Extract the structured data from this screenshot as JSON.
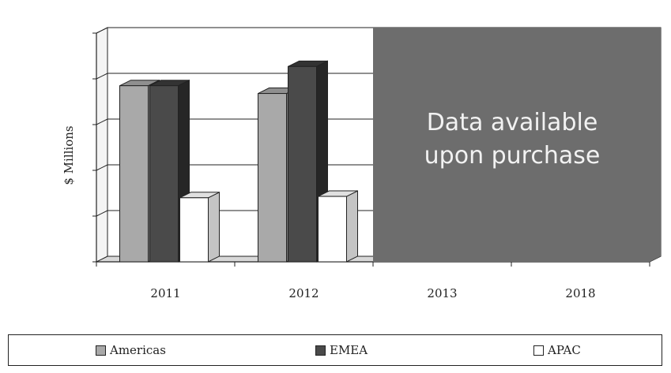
{
  "chart_data": {
    "type": "bar",
    "categories": [
      "2011",
      "2012",
      "2013",
      "2018"
    ],
    "ylabel": "$ Millions",
    "xlabel": "",
    "title": "",
    "ylim": [
      0,
      5
    ],
    "grid": true,
    "legend_position": "bottom",
    "series": [
      {
        "name": "Americas",
        "values": [
          3.85,
          3.68,
          null,
          null
        ],
        "color": "#a9a9a9",
        "side": "#7f7f7f",
        "top": "#8f8f8f"
      },
      {
        "name": "EMEA",
        "values": [
          3.85,
          4.27,
          null,
          null
        ],
        "color": "#4a4a4a",
        "side": "#262626",
        "top": "#333333"
      },
      {
        "name": "APAC",
        "values": [
          1.4,
          1.43,
          null,
          null
        ],
        "color": "#ffffff",
        "side": "#c4c4c4",
        "top": "#e0e0e0"
      }
    ],
    "overlay": {
      "lines": [
        "Data available",
        "upon purchase"
      ],
      "covers": [
        "2013",
        "2018"
      ],
      "color": "#6d6d6d"
    }
  }
}
